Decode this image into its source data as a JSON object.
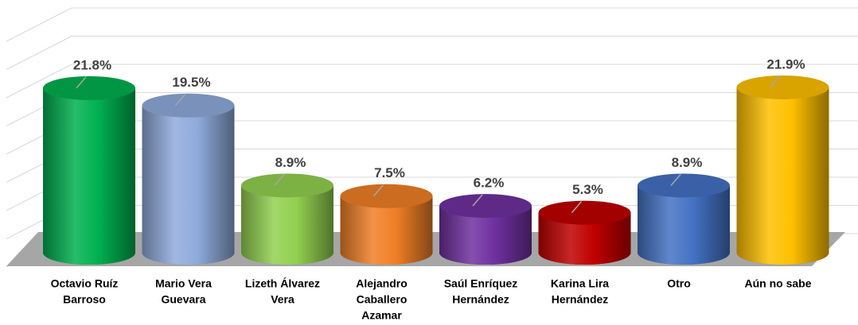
{
  "chart_data": {
    "type": "bar3d",
    "categories": [
      [
        "Octavio Ruíz",
        "Barroso"
      ],
      [
        "Mario Vera",
        "Guevara"
      ],
      [
        "Lizeth Álvarez",
        "Vera"
      ],
      [
        "Alejandro",
        "Caballero",
        "Azamar"
      ],
      [
        "Saúl Enríquez",
        "Hernández"
      ],
      [
        "Karina Lira",
        "Hernández"
      ],
      [
        "Otro"
      ],
      [
        "Aún no sabe"
      ]
    ],
    "values": [
      21.8,
      19.5,
      8.9,
      7.5,
      6.2,
      5.3,
      8.9,
      21.9
    ],
    "value_labels": [
      "21.8%",
      "19.5%",
      "8.9%",
      "7.5%",
      "6.2%",
      "5.3%",
      "8.9%",
      "21.9%"
    ],
    "colors": [
      "#00b050",
      "#8faadc",
      "#92d050",
      "#f07f26",
      "#7030a0",
      "#c00000",
      "#4472c4",
      "#ffc000"
    ],
    "ylim": [
      0,
      32
    ]
  }
}
